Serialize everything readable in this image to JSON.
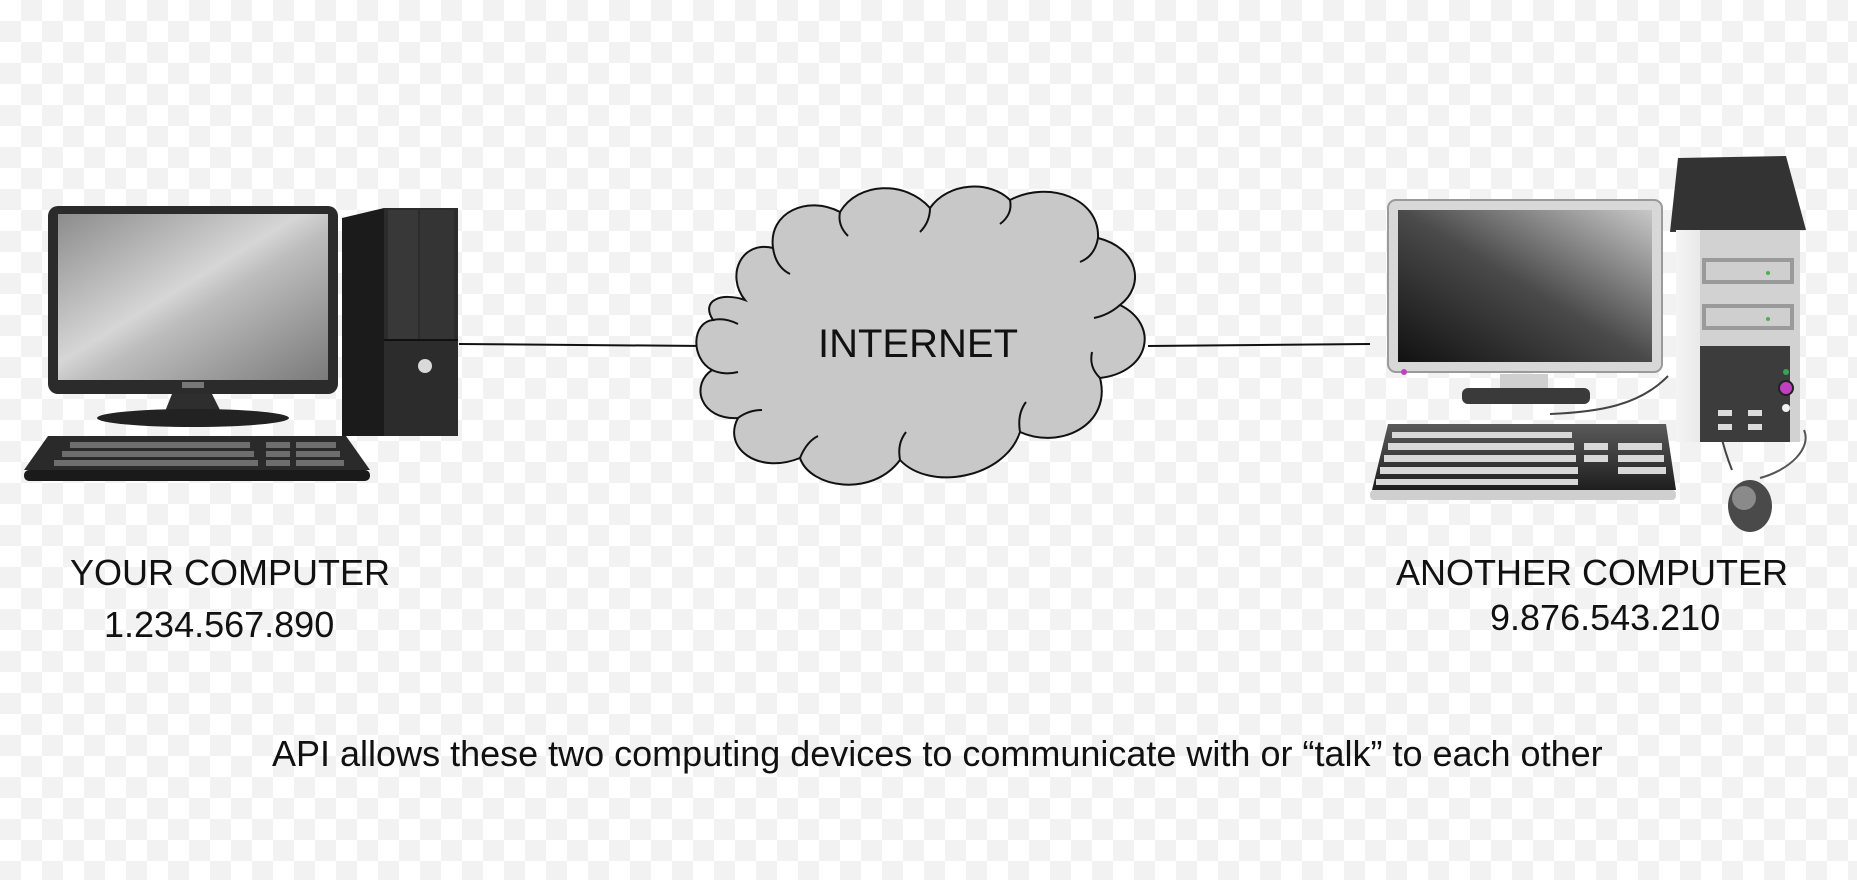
{
  "diagram": {
    "cloud_label": "INTERNET",
    "left_computer": {
      "name": "YOUR COMPUTER",
      "ip": "1.234.567.890"
    },
    "right_computer": {
      "name": "ANOTHER COMPUTER",
      "ip": "9.876.543.210"
    },
    "caption": "API allows these two computing devices to communicate with or “talk” to each other"
  },
  "icons": [
    "desktop-computer-icon",
    "desktop-computer-icon",
    "cloud-icon"
  ],
  "colors": {
    "cloud_fill": "#c8c8c8",
    "line": "#111111",
    "accent_led": "#c040c0"
  }
}
